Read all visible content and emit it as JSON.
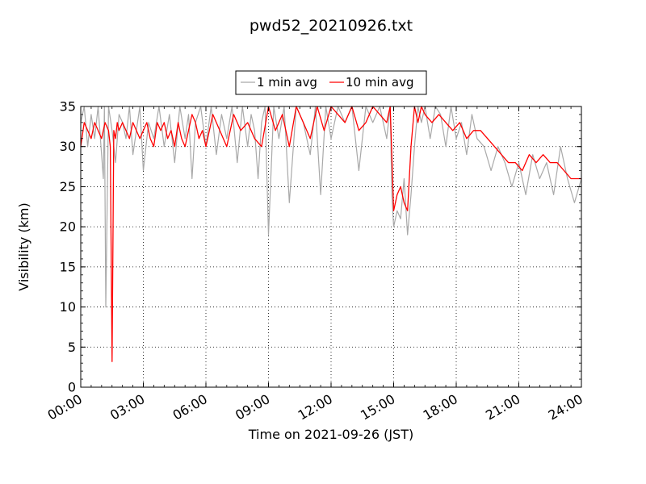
{
  "chart_data": {
    "type": "line",
    "title": "pwd52_20210926.txt",
    "xlabel": "Time on 2021-09-26 (JST)",
    "ylabel": "Visibility (km)",
    "xlim": [
      "00:00",
      "24:00"
    ],
    "ylim": [
      0,
      35
    ],
    "x_ticks": [
      "00:00",
      "03:00",
      "06:00",
      "09:00",
      "12:00",
      "15:00",
      "18:00",
      "21:00",
      "24:00"
    ],
    "y_ticks": [
      0,
      5,
      10,
      15,
      20,
      25,
      30,
      35
    ],
    "grid": true,
    "legend_position": "top-center",
    "series": [
      {
        "name": "1 min avg",
        "color": "#a9a9a9",
        "x": [
          "00:00",
          "00:10",
          "00:20",
          "00:30",
          "00:40",
          "00:50",
          "01:00",
          "01:05",
          "01:08",
          "01:12",
          "01:20",
          "01:30",
          "01:40",
          "01:50",
          "02:00",
          "02:10",
          "02:20",
          "02:30",
          "02:40",
          "02:50",
          "03:00",
          "03:15",
          "03:30",
          "03:45",
          "04:00",
          "04:15",
          "04:30",
          "04:45",
          "05:00",
          "05:10",
          "05:20",
          "05:30",
          "05:45",
          "06:00",
          "06:15",
          "06:30",
          "06:45",
          "07:00",
          "07:15",
          "07:30",
          "07:45",
          "08:00",
          "08:10",
          "08:20",
          "08:30",
          "08:40",
          "08:50",
          "09:00",
          "09:15",
          "09:30",
          "09:45",
          "10:00",
          "10:20",
          "10:40",
          "11:00",
          "11:15",
          "11:30",
          "11:45",
          "12:00",
          "12:20",
          "12:40",
          "13:00",
          "13:20",
          "13:40",
          "14:00",
          "14:20",
          "14:40",
          "14:50",
          "14:55",
          "15:00",
          "15:10",
          "15:20",
          "15:30",
          "15:40",
          "15:50",
          "16:00",
          "16:10",
          "16:20",
          "16:30",
          "16:45",
          "17:00",
          "17:15",
          "17:30",
          "17:45",
          "18:00",
          "18:15",
          "18:30",
          "18:45",
          "19:00",
          "19:20",
          "19:40",
          "20:00",
          "20:20",
          "20:40",
          "21:00",
          "21:20",
          "21:40",
          "22:00",
          "22:20",
          "22:40",
          "23:00",
          "23:20",
          "23:40",
          "24:00"
        ],
        "values": [
          33,
          35,
          30,
          34,
          31,
          35,
          29,
          26,
          35,
          10,
          35,
          32,
          28,
          34,
          33,
          31,
          35,
          29,
          32,
          35,
          27,
          33,
          31,
          35,
          30,
          34,
          28,
          35,
          31,
          34,
          26,
          33,
          35,
          30,
          35,
          29,
          34,
          31,
          35,
          28,
          35,
          30,
          34,
          32,
          26,
          33,
          35,
          19,
          35,
          31,
          35,
          23,
          35,
          33,
          29,
          35,
          24,
          35,
          31,
          35,
          33,
          35,
          27,
          35,
          33,
          35,
          31,
          35,
          24,
          20,
          22,
          21,
          26,
          19,
          24,
          30,
          35,
          33,
          35,
          31,
          35,
          34,
          30,
          35,
          31,
          33,
          29,
          34,
          31,
          30,
          27,
          30,
          28,
          25,
          28,
          24,
          29,
          26,
          28,
          24,
          30,
          26,
          23,
          26
        ]
      },
      {
        "name": "10 min avg",
        "color": "#ff0000",
        "x": [
          "00:00",
          "00:10",
          "00:20",
          "00:30",
          "00:40",
          "00:50",
          "01:00",
          "01:10",
          "01:20",
          "01:25",
          "01:30",
          "01:35",
          "01:40",
          "01:45",
          "01:50",
          "02:00",
          "02:10",
          "02:20",
          "02:30",
          "02:40",
          "02:50",
          "03:00",
          "03:10",
          "03:20",
          "03:30",
          "03:40",
          "03:50",
          "04:00",
          "04:10",
          "04:20",
          "04:30",
          "04:40",
          "04:50",
          "05:00",
          "05:10",
          "05:20",
          "05:30",
          "05:40",
          "05:50",
          "06:00",
          "06:20",
          "06:40",
          "07:00",
          "07:20",
          "07:40",
          "08:00",
          "08:20",
          "08:40",
          "09:00",
          "09:20",
          "09:40",
          "10:00",
          "10:20",
          "10:40",
          "11:00",
          "11:20",
          "11:40",
          "12:00",
          "12:20",
          "12:40",
          "13:00",
          "13:20",
          "13:40",
          "14:00",
          "14:20",
          "14:40",
          "14:50",
          "15:00",
          "15:10",
          "15:20",
          "15:30",
          "15:40",
          "15:50",
          "16:00",
          "16:10",
          "16:20",
          "16:30",
          "16:50",
          "17:10",
          "17:30",
          "17:50",
          "18:10",
          "18:30",
          "18:50",
          "19:10",
          "19:30",
          "19:50",
          "20:10",
          "20:30",
          "20:50",
          "21:10",
          "21:30",
          "21:50",
          "22:10",
          "22:30",
          "22:50",
          "23:10",
          "23:30",
          "23:50",
          "24:00"
        ],
        "values": [
          30,
          33,
          32,
          31,
          33,
          32,
          31,
          33,
          32,
          30,
          3.2,
          32,
          31,
          33,
          32,
          33,
          32,
          31,
          33,
          32,
          31,
          32,
          33,
          31,
          30,
          33,
          32,
          33,
          31,
          32,
          30,
          33,
          31,
          30,
          32,
          34,
          33,
          31,
          32,
          30,
          34,
          32,
          30,
          34,
          32,
          33,
          31,
          30,
          35,
          32,
          34,
          30,
          35,
          33,
          31,
          35,
          32,
          35,
          34,
          33,
          35,
          32,
          33,
          35,
          34,
          33,
          35,
          22,
          24,
          25,
          23,
          22,
          30,
          35,
          33,
          35,
          34,
          33,
          34,
          33,
          32,
          33,
          31,
          32,
          32,
          31,
          30,
          29,
          28,
          28,
          27,
          29,
          28,
          29,
          28,
          28,
          27,
          26,
          26,
          26
        ]
      }
    ]
  }
}
